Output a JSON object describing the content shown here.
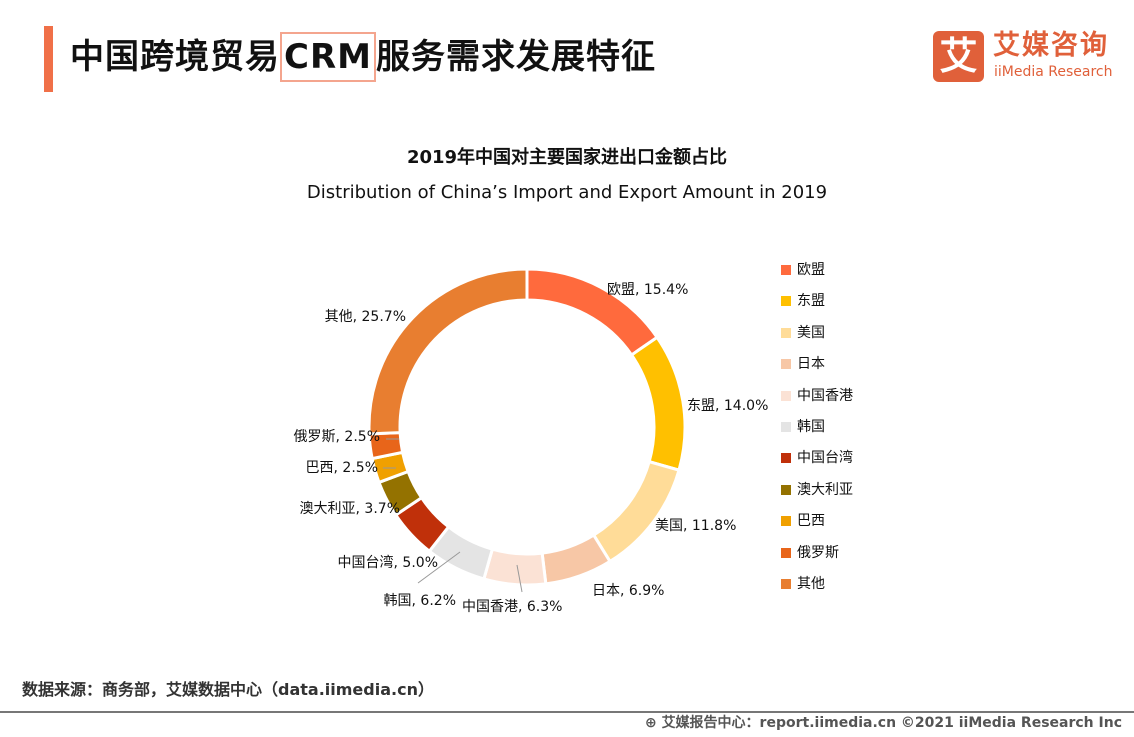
{
  "header": {
    "title_pre": "中国跨境贸易",
    "title_highlight": "CRM",
    "title_post": "服务需求发展特征"
  },
  "logo": {
    "mark": "艾",
    "cn": "艾媒咨询",
    "en": "iiMedia Research",
    "color": "#e0603a"
  },
  "chart_data": {
    "type": "pie",
    "donut": true,
    "title": "2019年中国对主要国家进出口金额占比",
    "subtitle": "Distribution of China’s Import and Export Amount in 2019",
    "legend_position": "right",
    "categories": [
      "欧盟",
      "东盟",
      "美国",
      "日本",
      "中国香港",
      "韩国",
      "中国台湾",
      "澳大利亚",
      "巴西",
      "俄罗斯",
      "其他"
    ],
    "values": [
      15.4,
      14.0,
      11.8,
      6.9,
      6.3,
      6.2,
      5.0,
      3.7,
      2.5,
      2.5,
      25.7
    ],
    "labels": [
      "欧盟, 15.4%",
      "东盟, 14.0%",
      "美国, 11.8%",
      "日本, 6.9%",
      "中国香港, 6.3%",
      "韩国, 6.2%",
      "中国台湾, 5.0%",
      "澳大利亚, 3.7%",
      "巴西, 2.5%",
      "俄罗斯, 2.5%",
      "其他, 25.7%"
    ],
    "colors": [
      "#ff6a3d",
      "#ffc000",
      "#ffdc98",
      "#f7c7a6",
      "#fbe2d5",
      "#e4e4e4",
      "#c0300a",
      "#947200",
      "#f0a000",
      "#e8651a",
      "#e87e30"
    ]
  },
  "footer": {
    "source": "数据来源：商务部，艾媒数据中心（data.iimedia.cn）",
    "copyright": "艾媒报告中心：report.iimedia.cn    ©2021  iiMedia Research  Inc"
  }
}
